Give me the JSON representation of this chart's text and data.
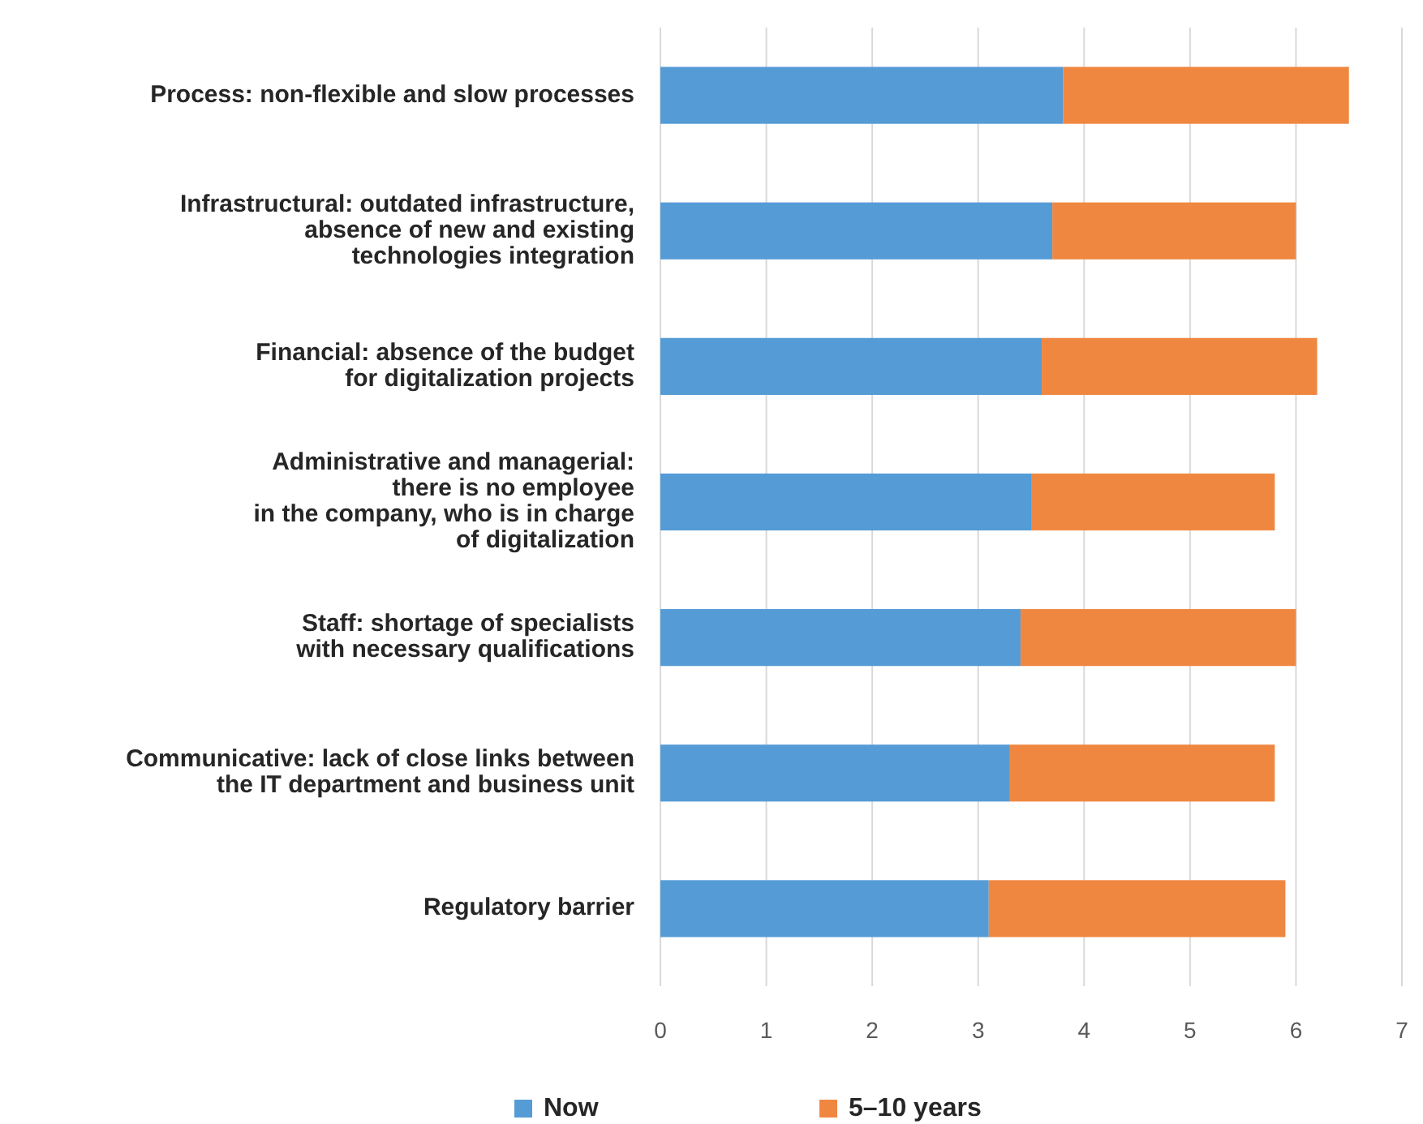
{
  "chart_data": {
    "type": "bar",
    "orientation": "horizontal",
    "stacked": true,
    "categories": [
      "Process: non-flexible and slow processes",
      "Infrastructural: outdated infrastructure,\nabsence of new and existing\ntechnologies integration",
      "Financial: absence of the budget\nfor digitalization projects",
      "Administrative and managerial:\nthere is no employee\nin the company, who is in charge\nof digitalization",
      "Staff: shortage of specialists\nwith necessary qualifications",
      "Communicative: lack of close links between\nthe IT department and business unit",
      "Regulatory barrier"
    ],
    "series": [
      {
        "name": "Now",
        "color": "#559bd6",
        "values": [
          3.8,
          3.7,
          3.6,
          3.5,
          3.4,
          3.3,
          3.1
        ]
      },
      {
        "name": "5–10 years",
        "color": "#f08741",
        "values": [
          2.7,
          2.3,
          2.6,
          2.3,
          2.6,
          2.5,
          2.8
        ]
      }
    ],
    "xlim": [
      0,
      7
    ],
    "xticks": [
      0,
      1,
      2,
      3,
      4,
      5,
      6,
      7
    ],
    "grid": "x",
    "legend": "bottom"
  }
}
